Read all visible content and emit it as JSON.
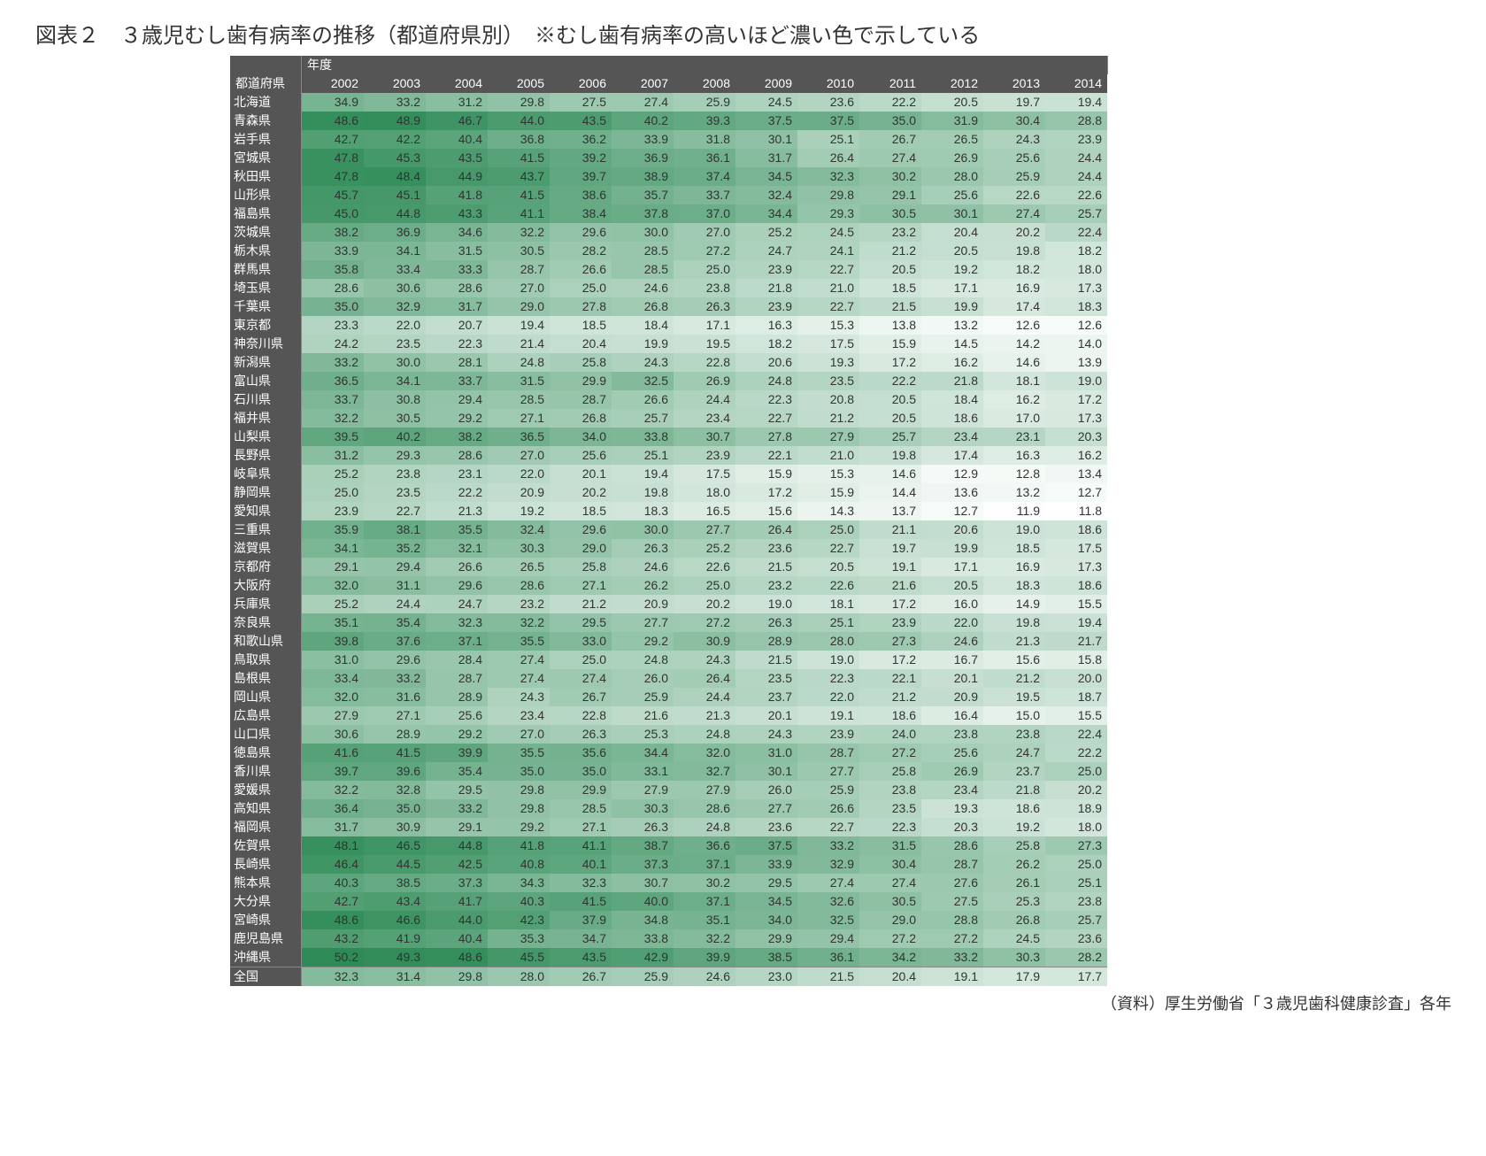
{
  "title": "図表２　３歳児むし歯有病率の推移（都道府県別）　※むし歯有病率の高いほど濃い色で示している",
  "year_header": "年度",
  "pref_header": "都道府県",
  "years": [
    "2002",
    "2003",
    "2004",
    "2005",
    "2006",
    "2007",
    "2008",
    "2009",
    "2010",
    "2011",
    "2012",
    "2013",
    "2014"
  ],
  "source": "（資料）厚生労働省「３歳児歯科健康診査」各年",
  "color_scale": {
    "min": 11.8,
    "max": 50.2,
    "min_color": "#ffffff",
    "max_color": "#2e8b57",
    "comment": "higher value = darker green"
  },
  "total_label": "全国",
  "total_values": [
    32.3,
    31.4,
    29.8,
    28.0,
    26.7,
    25.9,
    24.6,
    23.0,
    21.5,
    20.4,
    19.1,
    17.9,
    17.7
  ],
  "rows": [
    {
      "pref": "北海道",
      "v": [
        34.9,
        33.2,
        31.2,
        29.8,
        27.5,
        27.4,
        25.9,
        24.5,
        23.6,
        22.2,
        20.5,
        19.7,
        19.4
      ]
    },
    {
      "pref": "青森県",
      "v": [
        48.6,
        48.9,
        46.7,
        44.0,
        43.5,
        40.2,
        39.3,
        37.5,
        37.5,
        35.0,
        31.9,
        30.4,
        28.8
      ]
    },
    {
      "pref": "岩手県",
      "v": [
        42.7,
        42.2,
        40.4,
        36.8,
        36.2,
        33.9,
        31.8,
        30.1,
        25.1,
        26.7,
        26.5,
        24.3,
        23.9
      ]
    },
    {
      "pref": "宮城県",
      "v": [
        47.8,
        45.3,
        43.5,
        41.5,
        39.2,
        36.9,
        36.1,
        31.7,
        26.4,
        27.4,
        26.9,
        25.6,
        24.4
      ]
    },
    {
      "pref": "秋田県",
      "v": [
        47.8,
        48.4,
        44.9,
        43.7,
        39.7,
        38.9,
        37.4,
        34.5,
        32.3,
        30.2,
        28.0,
        25.9,
        24.4
      ]
    },
    {
      "pref": "山形県",
      "v": [
        45.7,
        45.1,
        41.8,
        41.5,
        38.6,
        35.7,
        33.7,
        32.4,
        29.8,
        29.1,
        25.6,
        22.6,
        22.6
      ]
    },
    {
      "pref": "福島県",
      "v": [
        45.0,
        44.8,
        43.3,
        41.1,
        38.4,
        37.8,
        37.0,
        34.4,
        29.3,
        30.5,
        30.1,
        27.4,
        25.7
      ]
    },
    {
      "pref": "茨城県",
      "v": [
        38.2,
        36.9,
        34.6,
        32.2,
        29.6,
        30.0,
        27.0,
        25.2,
        24.5,
        23.2,
        20.4,
        20.2,
        22.4
      ]
    },
    {
      "pref": "栃木県",
      "v": [
        33.9,
        34.1,
        31.5,
        30.5,
        28.2,
        28.5,
        27.2,
        24.7,
        24.1,
        21.2,
        20.5,
        19.8,
        18.2
      ]
    },
    {
      "pref": "群馬県",
      "v": [
        35.8,
        33.4,
        33.3,
        28.7,
        26.6,
        28.5,
        25.0,
        23.9,
        22.7,
        20.5,
        19.2,
        18.2,
        18.0
      ]
    },
    {
      "pref": "埼玉県",
      "v": [
        28.6,
        30.6,
        28.6,
        27.0,
        25.0,
        24.6,
        23.8,
        21.8,
        21.0,
        18.5,
        17.1,
        16.9,
        17.3
      ]
    },
    {
      "pref": "千葉県",
      "v": [
        35.0,
        32.9,
        31.7,
        29.0,
        27.8,
        26.8,
        26.3,
        23.9,
        22.7,
        21.5,
        19.9,
        17.4,
        18.3
      ]
    },
    {
      "pref": "東京都",
      "v": [
        23.3,
        22.0,
        20.7,
        19.4,
        18.5,
        18.4,
        17.1,
        16.3,
        15.3,
        13.8,
        13.2,
        12.6,
        12.6
      ]
    },
    {
      "pref": "神奈川県",
      "v": [
        24.2,
        23.5,
        22.3,
        21.4,
        20.4,
        19.9,
        19.5,
        18.2,
        17.5,
        15.9,
        14.5,
        14.2,
        14.0
      ]
    },
    {
      "pref": "新潟県",
      "v": [
        33.2,
        30.0,
        28.1,
        24.8,
        25.8,
        24.3,
        22.8,
        20.6,
        19.3,
        17.2,
        16.2,
        14.6,
        13.9
      ]
    },
    {
      "pref": "富山県",
      "v": [
        36.5,
        34.1,
        33.7,
        31.5,
        29.9,
        32.5,
        26.9,
        24.8,
        23.5,
        22.2,
        21.8,
        18.1,
        19.0
      ]
    },
    {
      "pref": "石川県",
      "v": [
        33.7,
        30.8,
        29.4,
        28.5,
        28.7,
        26.6,
        24.4,
        22.3,
        20.8,
        20.5,
        18.4,
        16.2,
        17.2
      ]
    },
    {
      "pref": "福井県",
      "v": [
        32.2,
        30.5,
        29.2,
        27.1,
        26.8,
        25.7,
        23.4,
        22.7,
        21.2,
        20.5,
        18.6,
        17.0,
        17.3
      ]
    },
    {
      "pref": "山梨県",
      "v": [
        39.5,
        40.2,
        38.2,
        36.5,
        34.0,
        33.8,
        30.7,
        27.8,
        27.9,
        25.7,
        23.4,
        23.1,
        20.3
      ]
    },
    {
      "pref": "長野県",
      "v": [
        31.2,
        29.3,
        28.6,
        27.0,
        25.6,
        25.1,
        23.9,
        22.1,
        21.0,
        19.8,
        17.4,
        16.3,
        16.2
      ]
    },
    {
      "pref": "岐阜県",
      "v": [
        25.2,
        23.8,
        23.1,
        22.0,
        20.1,
        19.4,
        17.5,
        15.9,
        15.3,
        14.6,
        12.9,
        12.8,
        13.4
      ]
    },
    {
      "pref": "静岡県",
      "v": [
        25.0,
        23.5,
        22.2,
        20.9,
        20.2,
        19.8,
        18.0,
        17.2,
        15.9,
        14.4,
        13.6,
        13.2,
        12.7
      ]
    },
    {
      "pref": "愛知県",
      "v": [
        23.9,
        22.7,
        21.3,
        19.2,
        18.5,
        18.3,
        16.5,
        15.6,
        14.3,
        13.7,
        12.7,
        11.9,
        11.8
      ]
    },
    {
      "pref": "三重県",
      "v": [
        35.9,
        38.1,
        35.5,
        32.4,
        29.6,
        30.0,
        27.7,
        26.4,
        25.0,
        21.1,
        20.6,
        19.0,
        18.6
      ]
    },
    {
      "pref": "滋賀県",
      "v": [
        34.1,
        35.2,
        32.1,
        30.3,
        29.0,
        26.3,
        25.2,
        23.6,
        22.7,
        19.7,
        19.9,
        18.5,
        17.5
      ]
    },
    {
      "pref": "京都府",
      "v": [
        29.1,
        29.4,
        26.6,
        26.5,
        25.8,
        24.6,
        22.6,
        21.5,
        20.5,
        19.1,
        17.1,
        16.9,
        17.3
      ]
    },
    {
      "pref": "大阪府",
      "v": [
        32.0,
        31.1,
        29.6,
        28.6,
        27.1,
        26.2,
        25.0,
        23.2,
        22.6,
        21.6,
        20.5,
        18.3,
        18.6
      ]
    },
    {
      "pref": "兵庫県",
      "v": [
        25.2,
        24.4,
        24.7,
        23.2,
        21.2,
        20.9,
        20.2,
        19.0,
        18.1,
        17.2,
        16.0,
        14.9,
        15.5
      ]
    },
    {
      "pref": "奈良県",
      "v": [
        35.1,
        35.4,
        32.3,
        32.2,
        29.5,
        27.7,
        27.2,
        26.3,
        25.1,
        23.9,
        22.0,
        19.8,
        19.4
      ]
    },
    {
      "pref": "和歌山県",
      "v": [
        39.8,
        37.6,
        37.1,
        35.5,
        33.0,
        29.2,
        30.9,
        28.9,
        28.0,
        27.3,
        24.6,
        21.3,
        21.7
      ]
    },
    {
      "pref": "鳥取県",
      "v": [
        31.0,
        29.6,
        28.4,
        27.4,
        25.0,
        24.8,
        24.3,
        21.5,
        19.0,
        17.2,
        16.7,
        15.6,
        15.8
      ]
    },
    {
      "pref": "島根県",
      "v": [
        33.4,
        33.2,
        28.7,
        27.4,
        27.4,
        26.0,
        26.4,
        23.5,
        22.3,
        22.1,
        20.1,
        21.2,
        20.0
      ]
    },
    {
      "pref": "岡山県",
      "v": [
        32.0,
        31.6,
        28.9,
        24.3,
        26.7,
        25.9,
        24.4,
        23.7,
        22.0,
        21.2,
        20.9,
        19.5,
        18.7
      ]
    },
    {
      "pref": "広島県",
      "v": [
        27.9,
        27.1,
        25.6,
        23.4,
        22.8,
        21.6,
        21.3,
        20.1,
        19.1,
        18.6,
        16.4,
        15.0,
        15.5
      ]
    },
    {
      "pref": "山口県",
      "v": [
        30.6,
        28.9,
        29.2,
        27.0,
        26.3,
        25.3,
        24.8,
        24.3,
        23.9,
        24.0,
        23.8,
        23.8,
        22.4
      ]
    },
    {
      "pref": "徳島県",
      "v": [
        41.6,
        41.5,
        39.9,
        35.5,
        35.6,
        34.4,
        32.0,
        31.0,
        28.7,
        27.2,
        25.6,
        24.7,
        22.2
      ]
    },
    {
      "pref": "香川県",
      "v": [
        39.7,
        39.6,
        35.4,
        35.0,
        35.0,
        33.1,
        32.7,
        30.1,
        27.7,
        25.8,
        26.9,
        23.7,
        25.0
      ]
    },
    {
      "pref": "愛媛県",
      "v": [
        32.2,
        32.8,
        29.5,
        29.8,
        29.9,
        27.9,
        27.9,
        26.0,
        25.9,
        23.8,
        23.4,
        21.8,
        20.2
      ]
    },
    {
      "pref": "高知県",
      "v": [
        36.4,
        35.0,
        33.2,
        29.8,
        28.5,
        30.3,
        28.6,
        27.7,
        26.6,
        23.5,
        19.3,
        18.6,
        18.9
      ]
    },
    {
      "pref": "福岡県",
      "v": [
        31.7,
        30.9,
        29.1,
        29.2,
        27.1,
        26.3,
        24.8,
        23.6,
        22.7,
        22.3,
        20.3,
        19.2,
        18.0
      ]
    },
    {
      "pref": "佐賀県",
      "v": [
        48.1,
        46.5,
        44.8,
        41.8,
        41.1,
        38.7,
        36.6,
        37.5,
        33.2,
        31.5,
        28.6,
        25.8,
        27.3
      ]
    },
    {
      "pref": "長崎県",
      "v": [
        46.4,
        44.5,
        42.5,
        40.8,
        40.1,
        37.3,
        37.1,
        33.9,
        32.9,
        30.4,
        28.7,
        26.2,
        25.0
      ]
    },
    {
      "pref": "熊本県",
      "v": [
        40.3,
        38.5,
        37.3,
        34.3,
        32.3,
        30.7,
        30.2,
        29.5,
        27.4,
        27.4,
        27.6,
        26.1,
        25.1
      ]
    },
    {
      "pref": "大分県",
      "v": [
        42.7,
        43.4,
        41.7,
        40.3,
        41.5,
        40.0,
        37.1,
        34.5,
        32.6,
        30.5,
        27.5,
        25.3,
        23.8
      ]
    },
    {
      "pref": "宮崎県",
      "v": [
        48.6,
        46.6,
        44.0,
        42.3,
        37.9,
        34.8,
        35.1,
        34.0,
        32.5,
        29.0,
        28.8,
        26.8,
        25.7
      ]
    },
    {
      "pref": "鹿児島県",
      "v": [
        43.2,
        41.9,
        40.4,
        35.3,
        34.7,
        33.8,
        32.2,
        29.9,
        29.4,
        27.2,
        27.2,
        24.5,
        23.6
      ]
    },
    {
      "pref": "沖縄県",
      "v": [
        50.2,
        49.3,
        48.6,
        45.5,
        43.5,
        42.9,
        39.9,
        38.5,
        36.1,
        34.2,
        33.2,
        30.3,
        28.2
      ]
    }
  ]
}
